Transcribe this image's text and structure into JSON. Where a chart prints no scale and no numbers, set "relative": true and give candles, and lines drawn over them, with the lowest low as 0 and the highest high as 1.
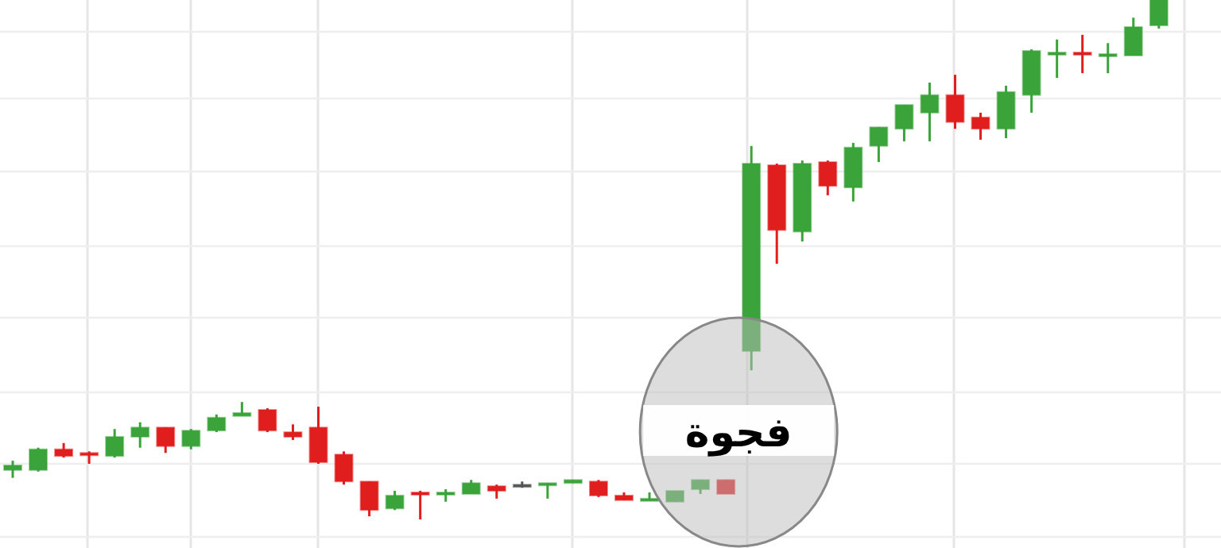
{
  "chart_data": {
    "type": "candlestick",
    "relative": true,
    "grid": true,
    "categories": [
      null,
      null,
      null,
      null,
      null,
      null,
      null,
      null,
      null,
      null,
      null,
      null,
      null,
      null,
      null,
      null,
      null,
      null,
      null,
      null,
      null,
      null,
      null,
      null,
      null,
      null,
      null,
      null,
      null,
      null,
      null,
      null,
      null,
      null,
      null,
      null,
      null,
      null,
      null,
      null,
      null,
      null,
      null,
      null,
      null,
      null
    ],
    "ohlc": [
      [
        0.095,
        0.113,
        0.08,
        0.104
      ],
      [
        0.095,
        0.138,
        0.092,
        0.135
      ],
      [
        0.135,
        0.147,
        0.119,
        0.122
      ],
      [
        0.128,
        0.131,
        0.107,
        0.125
      ],
      [
        0.122,
        0.174,
        0.119,
        0.159
      ],
      [
        0.159,
        0.187,
        0.138,
        0.177
      ],
      [
        0.177,
        0.177,
        0.128,
        0.141
      ],
      [
        0.141,
        0.174,
        0.135,
        0.171
      ],
      [
        0.171,
        0.202,
        0.168,
        0.196
      ],
      [
        0.199,
        0.226,
        0.199,
        0.205
      ],
      [
        0.211,
        0.214,
        0.168,
        0.171
      ],
      [
        0.168,
        0.183,
        0.153,
        0.159
      ],
      [
        0.177,
        0.217,
        0.107,
        0.11
      ],
      [
        0.125,
        0.131,
        0.067,
        0.073
      ],
      [
        0.073,
        0.073,
        0.006,
        0.018
      ],
      [
        0.021,
        0.055,
        0.018,
        0.046
      ],
      [
        0.052,
        0.055,
        0,
        0.049
      ],
      [
        0.049,
        0.058,
        0.034,
        0.052
      ],
      [
        0.049,
        0.076,
        0.049,
        0.07
      ],
      [
        0.064,
        0.067,
        0.04,
        0.055
      ],
      [
        0.067,
        0.073,
        0.061,
        0.067
      ],
      [
        0.067,
        0.07,
        0.04,
        0.07
      ],
      [
        0.07,
        0.076,
        0.07,
        0.076
      ],
      [
        0.073,
        0.076,
        0.043,
        0.046
      ],
      [
        0.046,
        0.052,
        0.037,
        0.037
      ],
      [
        0.037,
        0.052,
        0.037,
        0.04
      ],
      [
        0.034,
        0.055,
        0.034,
        0.055
      ],
      [
        0.058,
        0.076,
        0.049,
        0.076
      ],
      [
        0.076,
        0.076,
        0.049,
        0.049
      ],
      [
        0.324,
        0.719,
        0.287,
        0.685
      ],
      [
        0.682,
        0.685,
        0.492,
        0.557
      ],
      [
        0.554,
        0.691,
        0.535,
        0.685
      ],
      [
        0.688,
        0.691,
        0.624,
        0.642
      ],
      [
        0.639,
        0.725,
        0.612,
        0.716
      ],
      [
        0.719,
        0.755,
        0.688,
        0.755
      ],
      [
        0.752,
        0.798,
        0.728,
        0.798
      ],
      [
        0.783,
        0.841,
        0.728,
        0.817
      ],
      [
        0.817,
        0.856,
        0.752,
        0.765
      ],
      [
        0.774,
        0.783,
        0.731,
        0.752
      ],
      [
        0.752,
        0.835,
        0.734,
        0.823
      ],
      [
        0.817,
        0.905,
        0.783,
        0.902
      ],
      [
        0.896,
        0.924,
        0.85,
        0.899
      ],
      [
        0.899,
        0.933,
        0.859,
        0.896
      ],
      [
        0.893,
        0.917,
        0.859,
        0.896
      ],
      [
        0.893,
        0.966,
        0.893,
        0.948
      ],
      [
        0.951,
        1,
        0.945,
        1
      ]
    ],
    "annotations": [
      "فجوة"
    ]
  }
}
